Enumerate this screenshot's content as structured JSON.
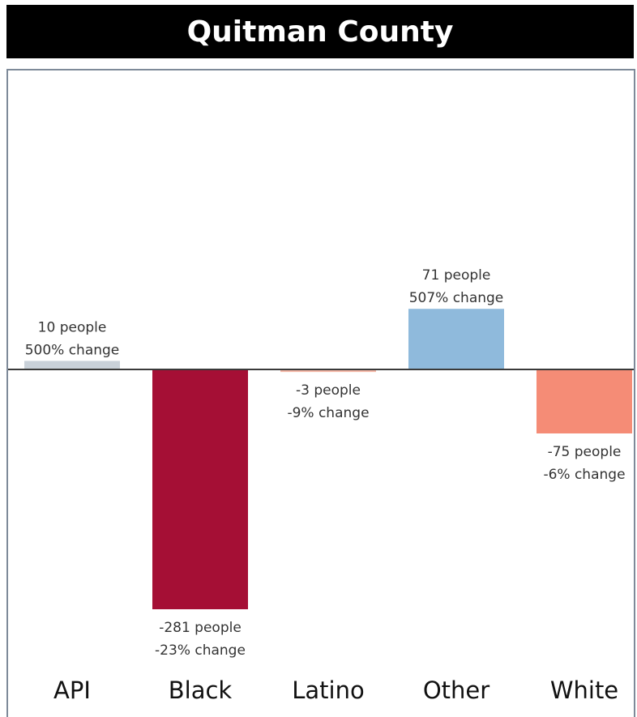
{
  "title": "Quitman County",
  "chart_data": {
    "type": "bar",
    "title": "Quitman County",
    "xlabel": "",
    "ylabel": "",
    "grid": false,
    "categories": [
      "API",
      "Black",
      "Latino",
      "Other",
      "White"
    ],
    "values": [
      10,
      -281,
      -3,
      71,
      -75
    ],
    "percent_change": [
      500,
      -23,
      -9,
      507,
      -6
    ],
    "data_labels": [
      [
        "10 people",
        "500% change"
      ],
      [
        "-281 people",
        "-23% change"
      ],
      [
        "-3 people",
        "-9% change"
      ],
      [
        "71 people",
        "507% change"
      ],
      [
        "-75 people",
        "-6% change"
      ]
    ],
    "colors": [
      "#c9d1d9",
      "#a50f35",
      "#f3b7a6",
      "#8fbadc",
      "#f58c76"
    ],
    "ylim": [
      -370,
      310
    ]
  }
}
